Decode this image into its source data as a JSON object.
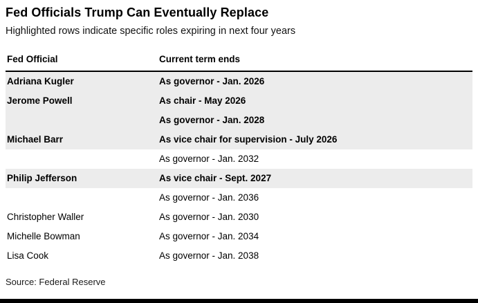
{
  "chart_data": {
    "type": "table",
    "title": "Fed Officials Trump Can Eventually Replace",
    "subtitle": "Highlighted rows indicate specific roles expiring in next four years",
    "columns": [
      "Fed Official",
      "Current term ends"
    ],
    "rows": [
      {
        "official": "Adriana Kugler",
        "term": "As governor - Jan. 2026",
        "highlighted": true
      },
      {
        "official": "Jerome Powell",
        "term": "As chair - May 2026",
        "highlighted": true
      },
      {
        "official": "",
        "term": "As governor - Jan. 2028",
        "highlighted": true
      },
      {
        "official": "Michael Barr",
        "term": "As vice chair for supervision - July 2026",
        "highlighted": true
      },
      {
        "official": "",
        "term": "As governor - Jan. 2032",
        "highlighted": false
      },
      {
        "official": "Philip Jefferson",
        "term": "As vice chair - Sept. 2027",
        "highlighted": true
      },
      {
        "official": "",
        "term": "As governor - Jan. 2036",
        "highlighted": false
      },
      {
        "official": "Christopher Waller",
        "term": "As governor - Jan. 2030",
        "highlighted": false
      },
      {
        "official": "Michelle Bowman",
        "term": "As governor - Jan. 2034",
        "highlighted": false
      },
      {
        "official": "Lisa Cook",
        "term": "As governor - Jan. 2038",
        "highlighted": false
      }
    ],
    "source": "Source: Federal Reserve",
    "colors": {
      "background": "#ffffff",
      "text": "#000000",
      "highlight": "#ececec",
      "header_rule": "#000000",
      "bottom_bar": "#000000"
    },
    "layout_hints": {
      "legend_position": "none",
      "grid": "off",
      "highlight_meaning": "specific roles expiring in next four years"
    }
  }
}
